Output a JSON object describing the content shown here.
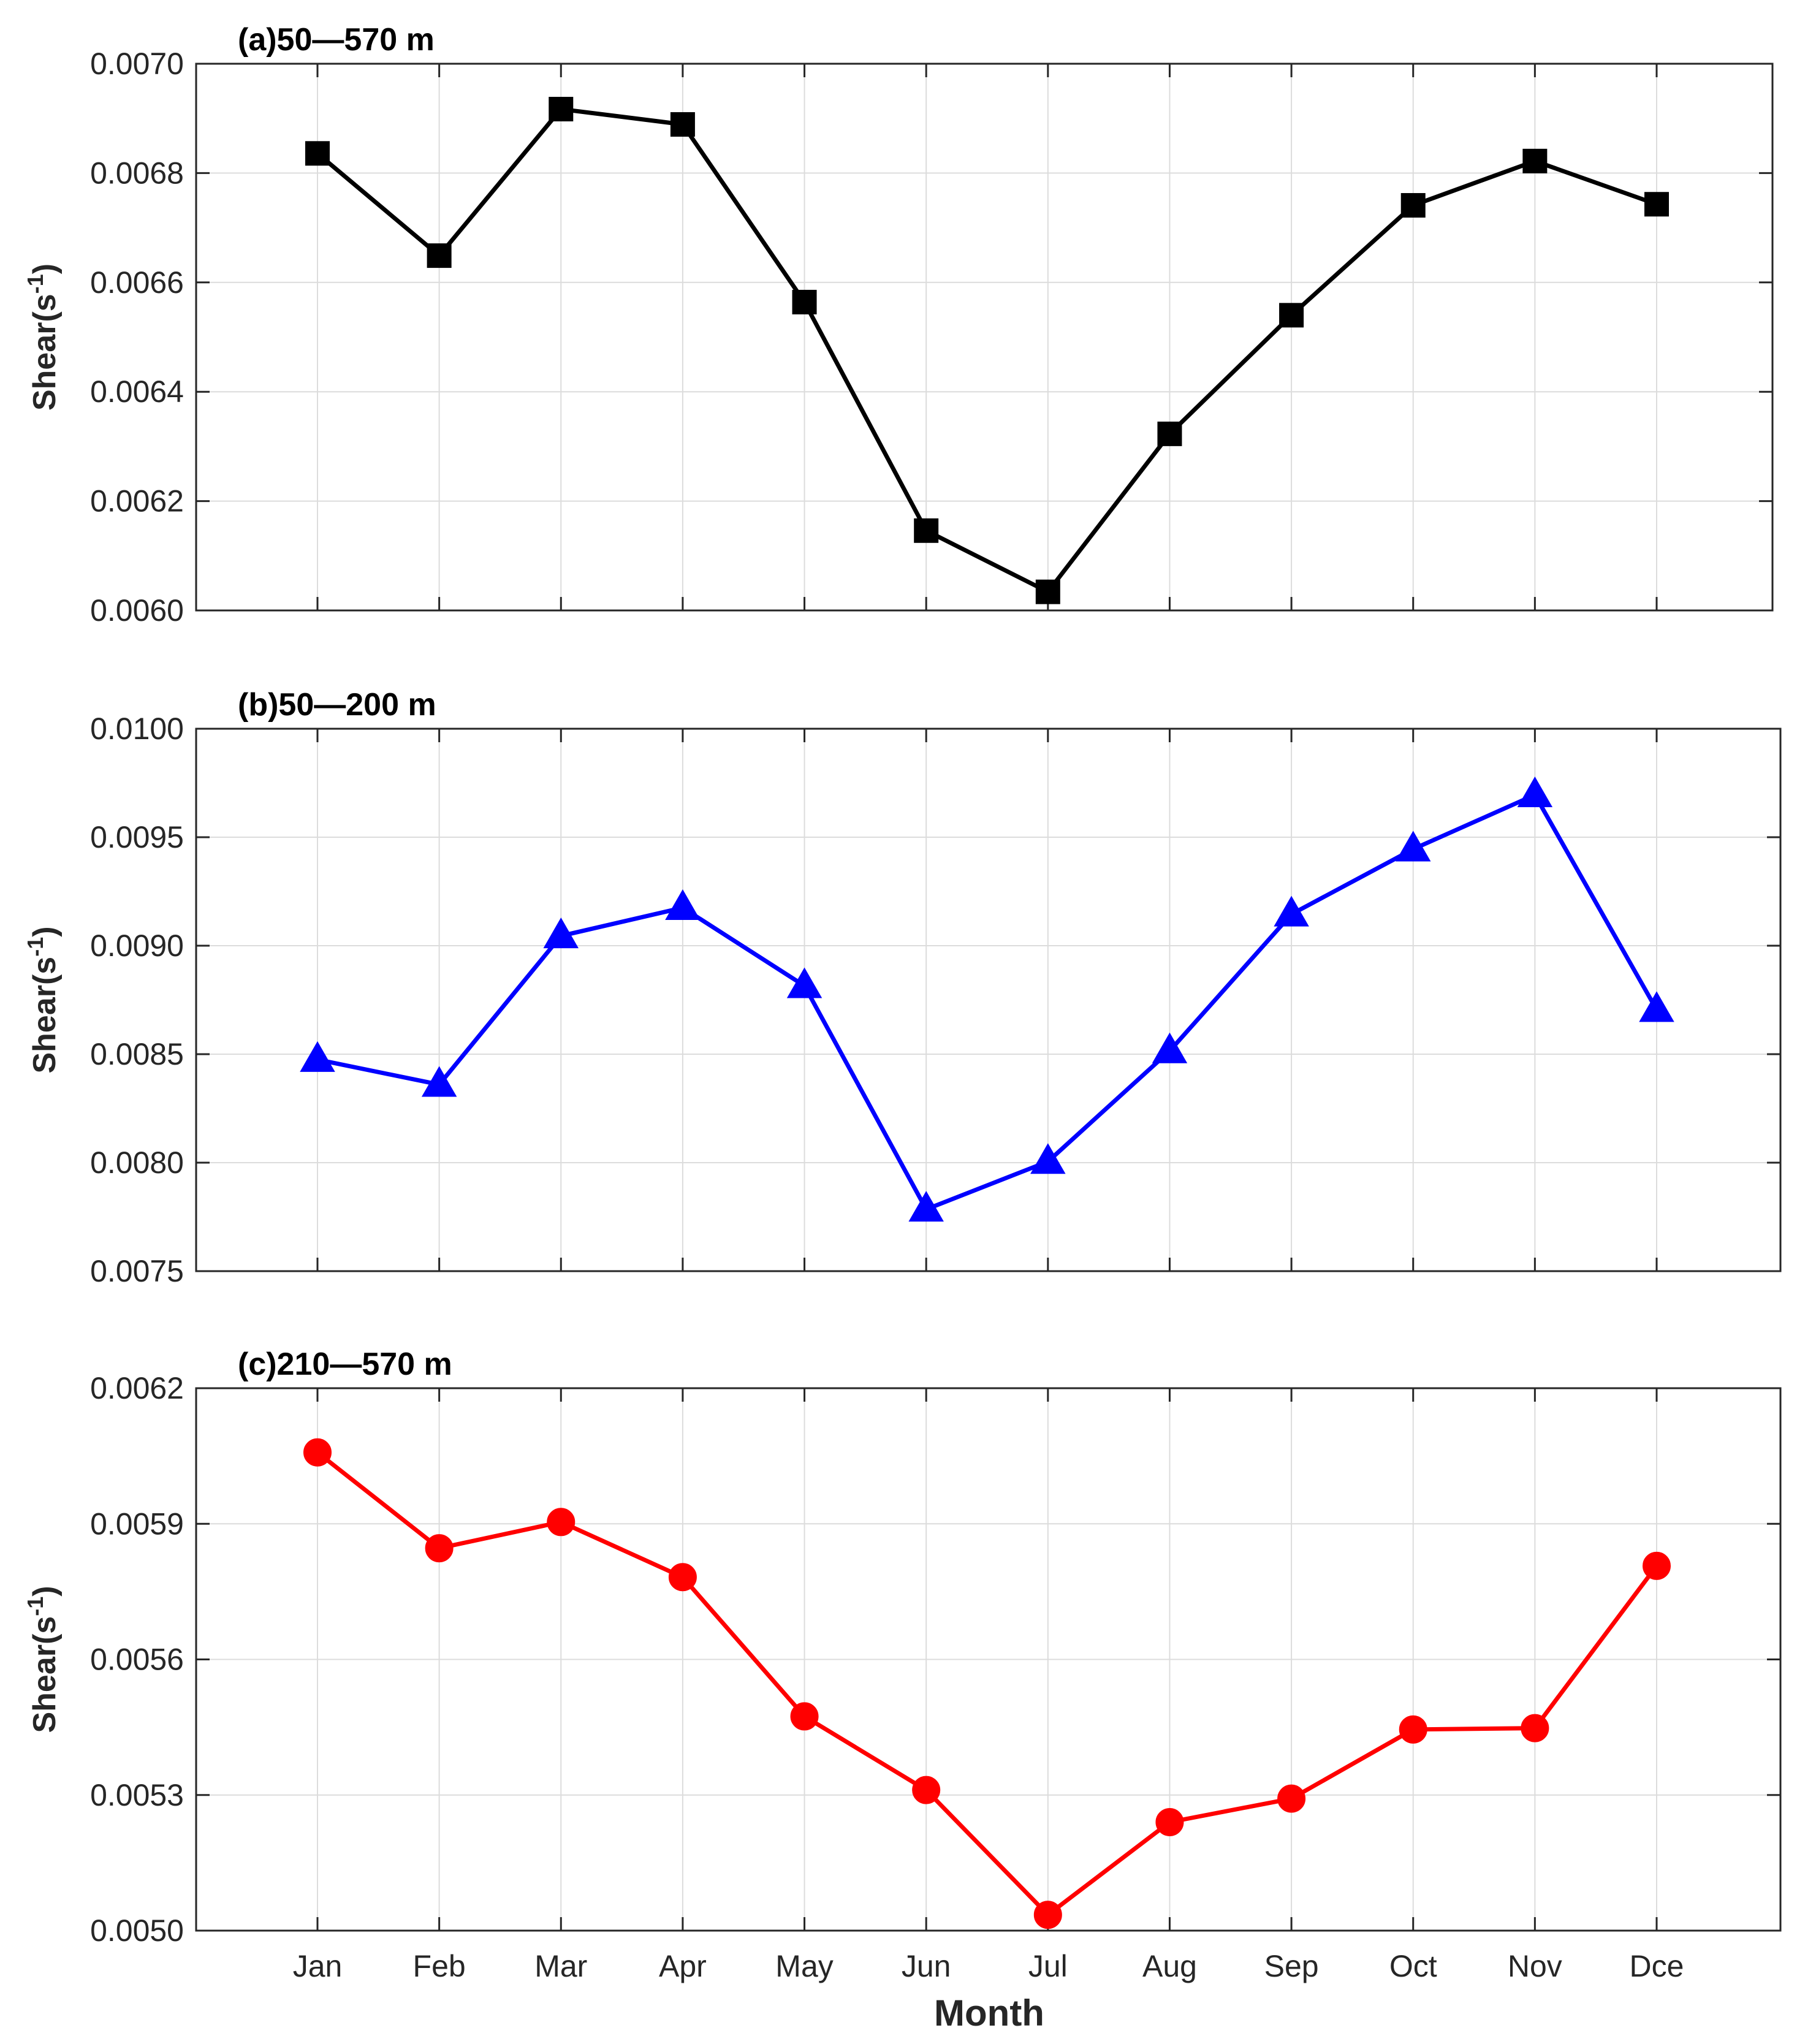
{
  "figure": {
    "xlabel": "Month",
    "months": [
      "Jan",
      "Feb",
      "Mar",
      "Apr",
      "May",
      "Jun",
      "Jul",
      "Aug",
      "Sep",
      "Oct",
      "Nov",
      "Dce"
    ]
  },
  "chart_data": [
    {
      "type": "line",
      "title": "(a)50—570 m",
      "ylabel": "Shear(s^-1)",
      "xlabel": "",
      "categories": [
        "Jan",
        "Feb",
        "Mar",
        "Apr",
        "May",
        "Jun",
        "Jul",
        "Aug",
        "Sep",
        "Oct",
        "Nov",
        "Dce"
      ],
      "ylim": [
        0.006,
        0.007
      ],
      "yticks": [
        "0.0060",
        "0.0062",
        "0.0064",
        "0.0066",
        "0.0068",
        "0.0070"
      ],
      "grid": true,
      "series": [
        {
          "color": "#000000",
          "marker": "square",
          "values": [
            0.006836,
            0.006649,
            0.006917,
            0.006889,
            0.006564,
            0.006146,
            0.006034,
            0.006323,
            0.00654,
            0.006741,
            0.006822,
            0.006743
          ]
        }
      ]
    },
    {
      "type": "line",
      "title": "(b)50—200 m",
      "ylabel": "Shear(s^-1)",
      "xlabel": "",
      "categories": [
        "Jan",
        "Feb",
        "Mar",
        "Apr",
        "May",
        "Jun",
        "Jul",
        "Aug",
        "Sep",
        "Oct",
        "Nov",
        "Dce"
      ],
      "ylim": [
        0.0075,
        0.01
      ],
      "yticks": [
        "0.0075",
        "0.0080",
        "0.0085",
        "0.0090",
        "0.0095",
        "0.0100"
      ],
      "grid": true,
      "series": [
        {
          "color": "#0000ff",
          "marker": "triangle",
          "values": [
            0.008475,
            0.00836,
            0.009045,
            0.009175,
            0.008815,
            0.007785,
            0.008005,
            0.008515,
            0.009145,
            0.009445,
            0.009695,
            0.008705
          ]
        }
      ]
    },
    {
      "type": "line",
      "title": "(c)210—570 m",
      "ylabel": "Shear(s^-1)",
      "xlabel": "Month",
      "categories": [
        "Jan",
        "Feb",
        "Mar",
        "Apr",
        "May",
        "Jun",
        "Jul",
        "Aug",
        "Sep",
        "Oct",
        "Nov",
        "Dce"
      ],
      "ylim": [
        0.005,
        0.0062
      ],
      "yticks": [
        "0.0050",
        "0.0053",
        "0.0056",
        "0.0059",
        "0.0062"
      ],
      "grid": true,
      "series": [
        {
          "color": "#ff0000",
          "marker": "circle",
          "values": [
            0.006058,
            0.005846,
            0.005904,
            0.005782,
            0.005474,
            0.005311,
            0.005035,
            0.00524,
            0.005292,
            0.005445,
            0.005448,
            0.005807
          ]
        }
      ]
    }
  ]
}
